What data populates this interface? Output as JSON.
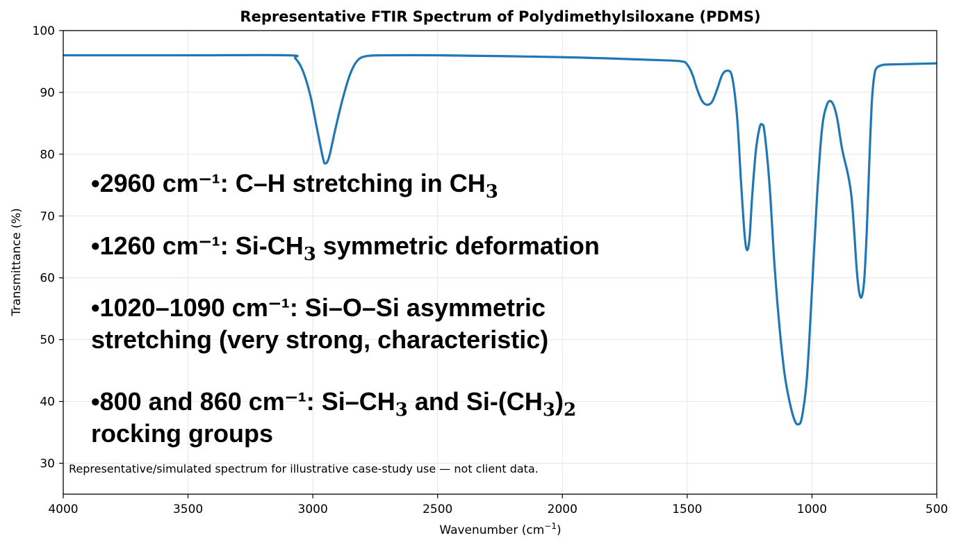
{
  "chart_data": {
    "type": "line",
    "title": "Representative FTIR Spectrum of Polydimethylsiloxane (PDMS)",
    "xlabel": "Wavenumber (cm",
    "xlabel_sup": "−1",
    "xlabel_end": ")",
    "ylabel": "Transmittance (%)",
    "xlim": [
      4000,
      500
    ],
    "ylim": [
      25,
      100
    ],
    "x_inverted": true,
    "grid": true,
    "line_color": "#1f77b4",
    "xticks": [
      4000,
      3500,
      3000,
      2500,
      2000,
      1500,
      1000,
      500
    ],
    "yticks": [
      30,
      40,
      50,
      60,
      70,
      80,
      90,
      100
    ],
    "series": [
      {
        "points": [
          [
            4000,
            96.0
          ],
          [
            3500,
            96.0
          ],
          [
            3100,
            96.0
          ],
          [
            3070,
            95.5
          ],
          [
            3040,
            93.5
          ],
          [
            3010,
            89.5
          ],
          [
            2985,
            84.5
          ],
          [
            2960,
            79.5
          ],
          [
            2950,
            78.5
          ],
          [
            2935,
            79.5
          ],
          [
            2910,
            84.0
          ],
          [
            2880,
            89.0
          ],
          [
            2850,
            93.0
          ],
          [
            2820,
            95.2
          ],
          [
            2780,
            95.9
          ],
          [
            2700,
            96.0
          ],
          [
            2500,
            96.0
          ],
          [
            2000,
            95.7
          ],
          [
            1600,
            95.2
          ],
          [
            1520,
            95.0
          ],
          [
            1500,
            94.5
          ],
          [
            1480,
            93.0
          ],
          [
            1460,
            90.5
          ],
          [
            1440,
            88.6
          ],
          [
            1420,
            88.0
          ],
          [
            1400,
            88.5
          ],
          [
            1380,
            90.5
          ],
          [
            1360,
            92.8
          ],
          [
            1340,
            93.5
          ],
          [
            1320,
            92.5
          ],
          [
            1300,
            86.0
          ],
          [
            1285,
            76.0
          ],
          [
            1270,
            67.0
          ],
          [
            1260,
            64.5
          ],
          [
            1250,
            66.5
          ],
          [
            1240,
            73.0
          ],
          [
            1225,
            80.5
          ],
          [
            1210,
            84.3
          ],
          [
            1200,
            84.8
          ],
          [
            1190,
            83.5
          ],
          [
            1170,
            75.0
          ],
          [
            1150,
            62.0
          ],
          [
            1130,
            52.0
          ],
          [
            1110,
            44.5
          ],
          [
            1090,
            40.0
          ],
          [
            1070,
            37.0
          ],
          [
            1055,
            36.3
          ],
          [
            1040,
            37.5
          ],
          [
            1020,
            44.0
          ],
          [
            1000,
            58.0
          ],
          [
            980,
            73.0
          ],
          [
            960,
            84.0
          ],
          [
            940,
            88.0
          ],
          [
            920,
            88.4
          ],
          [
            900,
            86.0
          ],
          [
            880,
            81.0
          ],
          [
            860,
            77.5
          ],
          [
            850,
            75.5
          ],
          [
            840,
            72.5
          ],
          [
            830,
            67.0
          ],
          [
            820,
            61.0
          ],
          [
            810,
            57.5
          ],
          [
            800,
            57.0
          ],
          [
            790,
            60.0
          ],
          [
            780,
            68.0
          ],
          [
            770,
            79.0
          ],
          [
            760,
            88.5
          ],
          [
            750,
            92.8
          ],
          [
            740,
            94.0
          ],
          [
            720,
            94.4
          ],
          [
            700,
            94.5
          ],
          [
            600,
            94.6
          ],
          [
            500,
            94.7
          ]
        ]
      }
    ],
    "annotations": [
      {
        "id": "a1",
        "lines": [
          [
            {
              "t": "•2960 cm⁻¹: C–H stretching in CH"
            },
            {
              "t": "3",
              "sub": true
            }
          ]
        ]
      },
      {
        "id": "a2",
        "lines": [
          [
            {
              "t": "•1260 cm⁻¹: Si-CH"
            },
            {
              "t": "3",
              "sub": true
            },
            {
              "t": " symmetric deformation"
            }
          ]
        ]
      },
      {
        "id": "a3",
        "lines": [
          [
            {
              "t": "•1020–1090 cm⁻¹: Si–O–Si asymmetric"
            }
          ],
          [
            {
              "t": "stretching (very strong, characteristic)"
            }
          ]
        ]
      },
      {
        "id": "a4",
        "lines": [
          [
            {
              "t": "•800 and 860 cm⁻¹: Si–CH"
            },
            {
              "t": "3",
              "sub": true
            },
            {
              "t": " and Si-(CH"
            },
            {
              "t": "3",
              "sub": true
            },
            {
              "t": ")"
            },
            {
              "t": "2",
              "sub": true
            }
          ],
          [
            {
              "t": "rocking groups"
            }
          ]
        ]
      }
    ],
    "footnote": "Representative/simulated spectrum for illustrative case-study use — not client data."
  }
}
